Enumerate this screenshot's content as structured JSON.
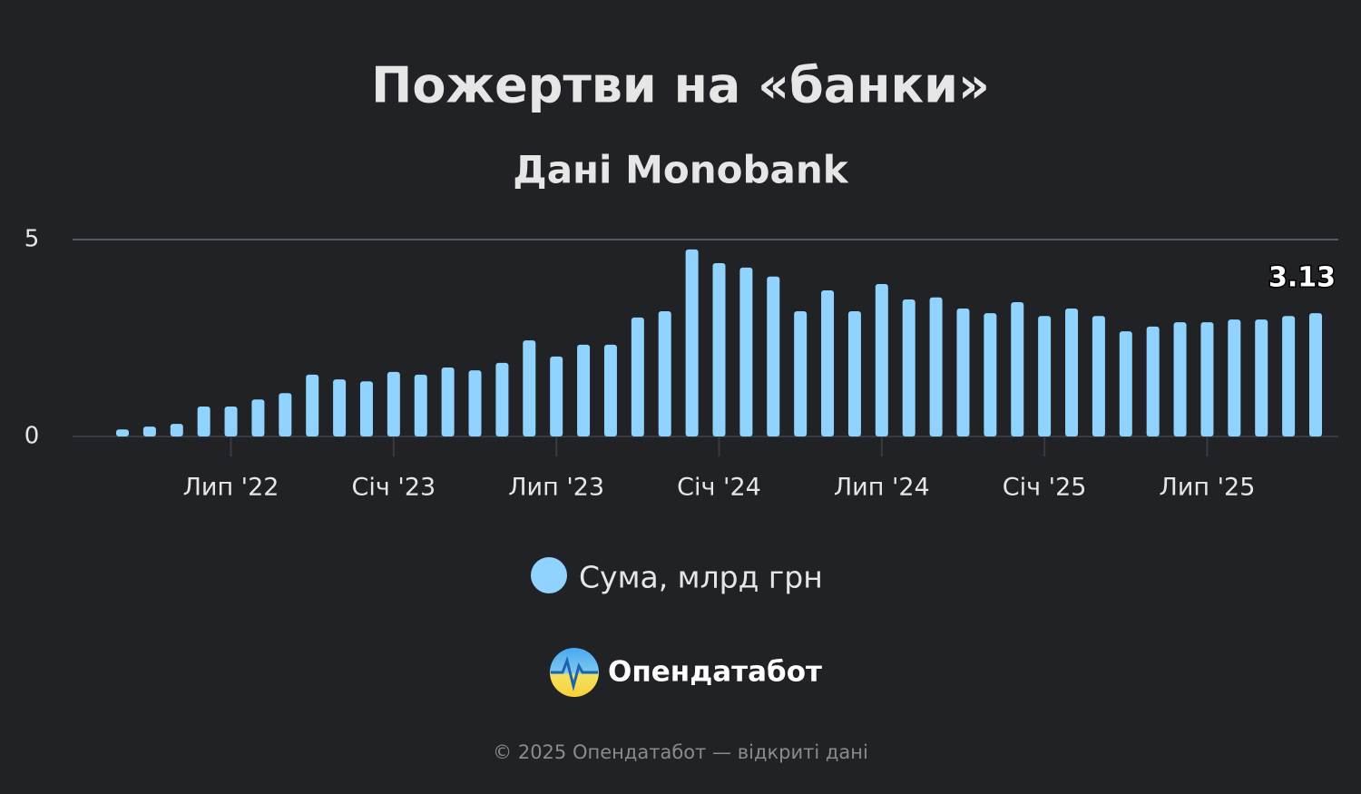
{
  "chart_data": {
    "type": "bar",
    "title": "Пожертви на «банки»",
    "subtitle": "Дані Monobank",
    "categories": [
      null,
      null,
      null,
      null,
      "Лип '22",
      null,
      null,
      null,
      null,
      null,
      "Січ '23",
      null,
      null,
      null,
      null,
      null,
      "Лип '23",
      null,
      null,
      null,
      null,
      null,
      "Січ '24",
      null,
      null,
      null,
      null,
      null,
      "Лип '24",
      null,
      null,
      null,
      null,
      null,
      "Січ '25",
      null,
      null,
      null,
      null,
      null,
      "Лип '25",
      null,
      null,
      null,
      null
    ],
    "series": [
      {
        "name": "Сума, млрд грн",
        "color": "#8fd3fe",
        "values": [
          0.18,
          0.25,
          0.32,
          0.76,
          0.76,
          0.94,
          1.1,
          1.57,
          1.45,
          1.4,
          1.64,
          1.57,
          1.75,
          1.68,
          1.87,
          2.44,
          2.03,
          2.33,
          2.33,
          3.02,
          3.18,
          4.75,
          4.4,
          4.29,
          4.06,
          3.18,
          3.71,
          3.18,
          3.87,
          3.48,
          3.53,
          3.25,
          3.13,
          3.41,
          3.06,
          3.25,
          3.06,
          2.67,
          2.79,
          2.9,
          2.9,
          2.97,
          2.97,
          3.06,
          3.13
        ]
      }
    ],
    "ylim": [
      0,
      5
    ],
    "yticks": [
      0,
      5
    ],
    "grid": true
  },
  "brand": "Опендатабот",
  "footer": "© 2025 Опендатабот — відкриті дані"
}
